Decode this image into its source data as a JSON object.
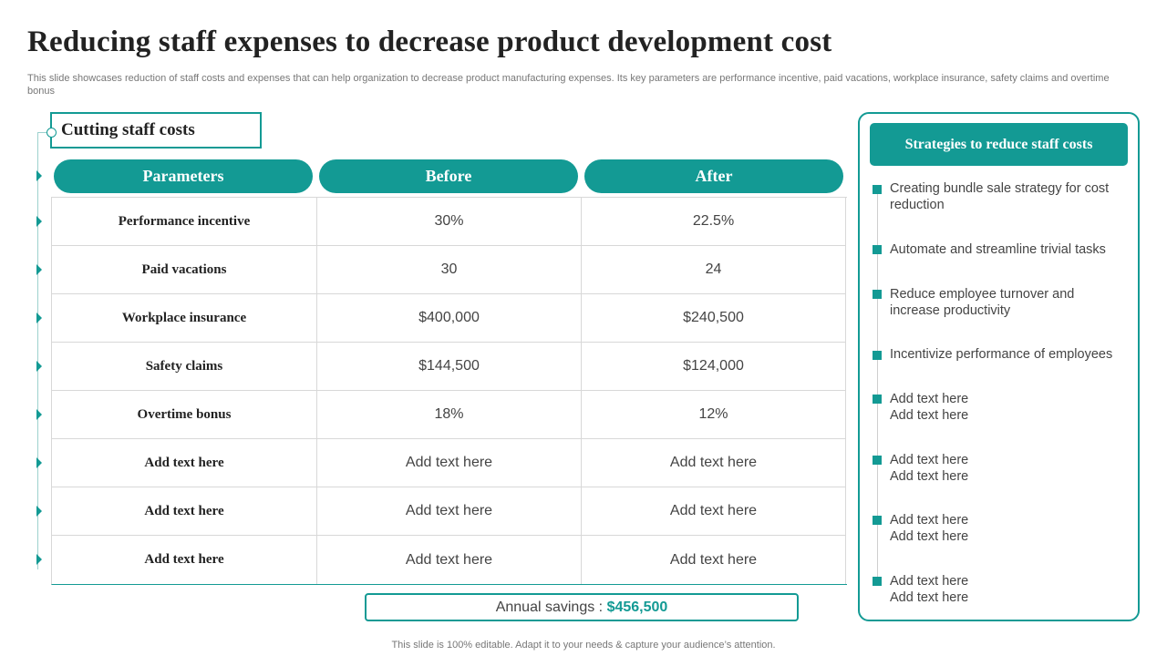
{
  "title": "Reducing staff expenses to decrease product development cost",
  "subtitle": "This slide showcases reduction of staff costs and expenses that can help organization to decrease product manufacturing expenses. Its key parameters are performance incentive, paid vacations, workplace insurance, safety claims and overtime bonus",
  "section_label": "Cutting staff costs",
  "table": {
    "headers": [
      "Parameters",
      "Before",
      "After"
    ],
    "rows": [
      [
        "Performance incentive",
        "30%",
        "22.5%"
      ],
      [
        "Paid vacations",
        "30",
        "24"
      ],
      [
        "Workplace insurance",
        "$400,000",
        "$240,500"
      ],
      [
        "Safety claims",
        "$144,500",
        "$124,000"
      ],
      [
        "Overtime bonus",
        "18%",
        "12%"
      ],
      [
        "Add text here",
        "Add text here",
        "Add text here"
      ],
      [
        "Add text here",
        "Add text here",
        "Add text here"
      ],
      [
        "Add text here",
        "Add text here",
        "Add text here"
      ]
    ]
  },
  "savings": {
    "label": "Annual savings : ",
    "value": "$456,500"
  },
  "strategies": {
    "title": "Strategies to reduce staff costs",
    "items": [
      "Creating bundle sale strategy for cost reduction",
      "Automate and streamline trivial tasks",
      "Reduce employee turnover and increase productivity",
      "Incentivize performance of employees",
      "Add text here Add text here",
      "Add text here Add text here",
      "Add text here Add text here",
      "Add text here Add text here"
    ]
  },
  "footer": "This slide is 100% editable. Adapt it to your needs & capture your audience’s attention.",
  "colors": {
    "accent": "#139a94",
    "title": "#222222",
    "body": "#444444"
  }
}
